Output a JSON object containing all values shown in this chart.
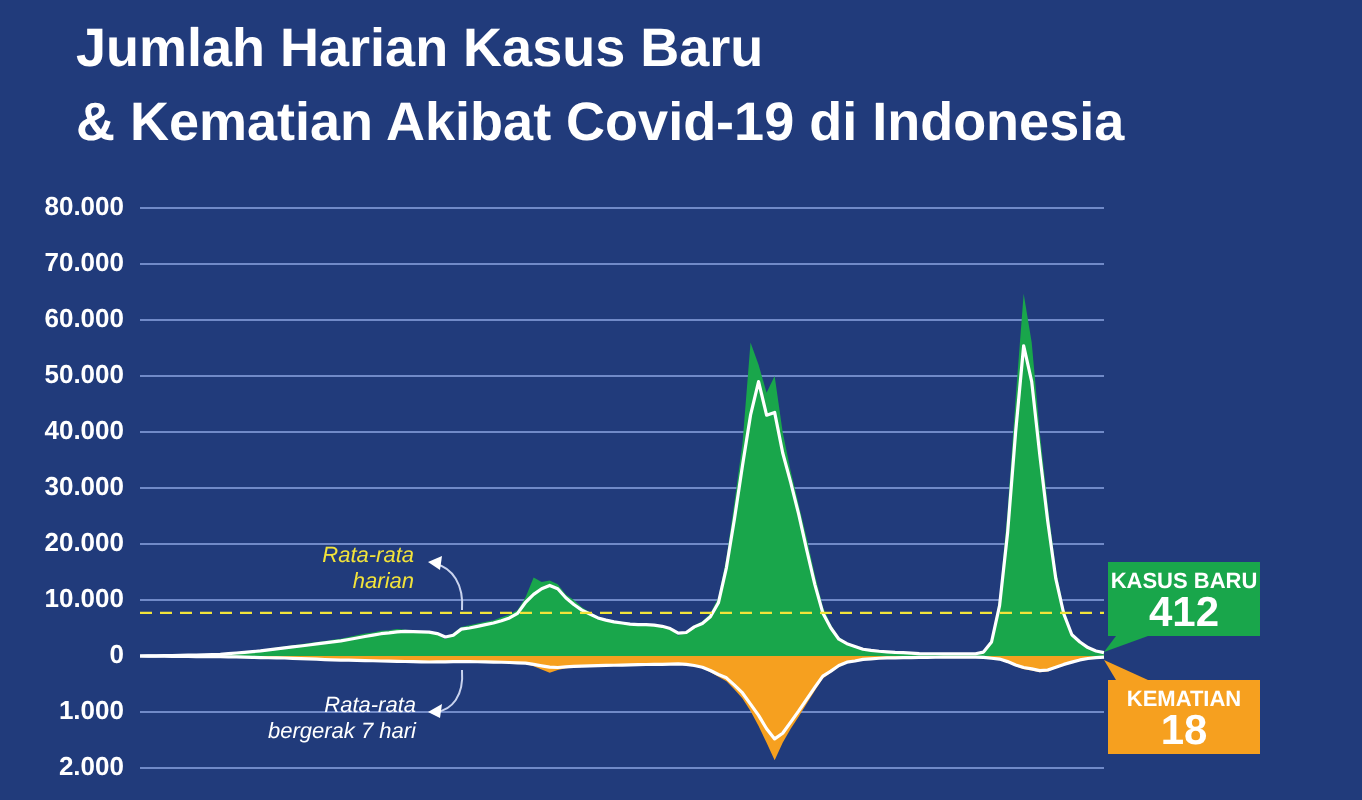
{
  "chart_data": {
    "type": "area",
    "title": "Jumlah Harian Kasus Baru\n& Kematian Akibat Covid-19 di Indonesia",
    "categories": [
      null,
      null,
      null,
      null,
      null,
      null,
      null,
      null,
      null,
      null,
      null,
      null,
      null,
      null,
      null,
      null,
      null,
      null,
      null,
      null,
      null,
      null,
      null,
      null,
      null,
      null,
      null,
      null,
      null,
      null,
      null,
      null,
      null,
      null,
      null,
      null,
      null,
      null,
      null,
      null,
      null,
      null,
      null,
      null,
      null,
      null,
      null,
      null,
      null,
      null,
      null,
      null,
      null,
      null,
      null,
      null,
      null,
      null,
      null,
      null,
      null,
      null,
      null,
      null,
      null,
      null,
      null,
      null,
      null,
      null,
      null,
      null,
      null,
      null,
      null,
      null,
      null,
      null,
      null,
      null,
      null,
      null,
      null,
      null,
      null,
      null,
      null,
      null,
      null,
      null,
      null,
      null,
      null,
      null,
      null,
      null,
      null,
      null,
      null,
      null,
      null,
      null,
      null,
      null,
      null,
      null,
      null,
      null,
      null,
      null,
      null,
      null,
      null,
      null,
      null,
      null,
      null,
      null,
      null,
      null,
      null
    ],
    "ylim": [
      -20000,
      80000
    ],
    "yticks": [
      0,
      {
        "value": 10000,
        "label": "10.000"
      },
      {
        "value": 20000,
        "label": "20.000"
      },
      {
        "value": 30000,
        "label": "30.000"
      },
      {
        "value": 40000,
        "label": "40.000"
      },
      {
        "value": 50000,
        "label": "50.000"
      },
      {
        "value": 60000,
        "label": "60.000"
      },
      {
        "value": 70000,
        "label": "70.000"
      },
      {
        "value": 80000,
        "label": "80.000"
      }
    ],
    "y2lim": [
      2000,
      -8000
    ],
    "y2ticks": [
      {
        "value": 1000,
        "label": "1.000"
      },
      {
        "value": 2000,
        "label": "2.000"
      }
    ],
    "grid": true,
    "marker": "none",
    "ref_lines": [
      {
        "axis": "y",
        "value": 7700,
        "label": "Rata-rata harian",
        "color": "#f2e33a",
        "line_style": "dashed"
      }
    ],
    "annotations": [
      "Rata-rata bergerak 7 hari"
    ],
    "series": [
      {
        "name": "KASUS BARU",
        "color": "#19a64b",
        "values": [
          0,
          30,
          60,
          90,
          110,
          130,
          200,
          250,
          300,
          350,
          400,
          500,
          600,
          800,
          900,
          1100,
          1300,
          1500,
          1700,
          1900,
          2100,
          2300,
          2500,
          2700,
          2900,
          3100,
          3400,
          3700,
          4000,
          4200,
          4500,
          4600,
          4800,
          4700,
          4600,
          4400,
          4300,
          3800,
          3000,
          4100,
          5200,
          5500,
          5800,
          6100,
          6400,
          6900,
          7400,
          8200,
          10500,
          14000,
          13200,
          13500,
          12800,
          11000,
          10000,
          8700,
          7800,
          7100,
          6600,
          6300,
          6100,
          5900,
          5700,
          5800,
          5600,
          5400,
          5000,
          3600,
          4400,
          5500,
          6200,
          7600,
          10500,
          17500,
          27500,
          38000,
          56000,
          52000,
          47000,
          50000,
          40000,
          33000,
          27000,
          21000,
          14500,
          8800,
          5600,
          3400,
          2400,
          1800,
          1300,
          1100,
          900,
          800,
          700,
          650,
          550,
          450,
          420,
          420,
          420,
          420,
          420,
          420,
          420,
          800,
          3000,
          10500,
          26000,
          46000,
          64700,
          56000,
          40000,
          27000,
          15500,
          8500,
          4200,
          2700,
          1700,
          1000,
          412
        ],
        "value_labels": [
          null,
          null,
          null,
          null,
          null,
          null,
          null,
          null,
          null,
          null,
          null,
          null,
          null,
          null,
          null,
          null,
          null,
          null,
          null,
          null,
          null,
          null,
          null,
          null,
          null,
          null,
          null,
          null,
          null,
          null,
          null,
          null,
          null,
          null,
          null,
          null,
          null,
          null,
          null,
          null,
          null,
          null,
          null,
          null,
          null,
          null,
          null,
          null,
          null,
          null,
          null,
          null,
          null,
          null,
          null,
          null,
          null,
          null,
          null,
          null,
          null,
          null,
          null,
          null,
          null,
          null,
          null,
          null,
          null,
          null,
          null,
          null,
          null,
          null,
          null,
          null,
          null,
          null,
          null,
          null,
          null,
          null,
          null,
          null,
          null,
          null,
          null,
          null,
          null,
          null,
          null,
          null,
          null,
          null,
          null,
          null,
          null,
          null,
          null,
          null,
          null,
          null,
          null,
          null,
          null,
          null,
          null,
          null,
          null,
          null,
          null,
          null,
          null,
          null,
          null,
          null,
          null,
          null,
          null,
          null,
          "412"
        ]
      },
      {
        "type": "line",
        "color": "#ffffff",
        "values": [
          0,
          20,
          40,
          60,
          80,
          100,
          140,
          180,
          220,
          260,
          300,
          420,
          540,
          660,
          780,
          900,
          1080,
          1270,
          1450,
          1630,
          1790,
          1960,
          2160,
          2330,
          2510,
          2700,
          2950,
          3220,
          3480,
          3740,
          3980,
          4120,
          4310,
          4380,
          4340,
          4300,
          4250,
          4000,
          3400,
          3700,
          4800,
          5000,
          5300,
          5600,
          5900,
          6300,
          6800,
          7600,
          9600,
          11000,
          12000,
          12600,
          12000,
          10400,
          9200,
          8200,
          7500,
          6800,
          6400,
          6100,
          5900,
          5700,
          5600,
          5600,
          5500,
          5300,
          4900,
          4100,
          4200,
          5200,
          5800,
          7000,
          9500,
          15800,
          24500,
          34000,
          43000,
          49000,
          43000,
          43500,
          36300,
          31000,
          25300,
          18900,
          12800,
          7700,
          5000,
          3000,
          2200,
          1700,
          1200,
          1000,
          850,
          750,
          650,
          600,
          500,
          420,
          400,
          400,
          400,
          400,
          400,
          400,
          400,
          700,
          2500,
          9000,
          22000,
          40000,
          55400,
          49000,
          36000,
          24000,
          13800,
          7500,
          3800,
          2500,
          1500,
          900,
          600
        ]
      },
      {
        "name": "KEMATIAN",
        "axis": "y2",
        "color": "#f6a01f",
        "values": [
          0,
          1,
          3,
          5,
          8,
          10,
          11,
          12,
          12,
          12,
          13,
          17,
          20,
          25,
          30,
          33,
          36,
          40,
          45,
          50,
          55,
          60,
          65,
          70,
          75,
          80,
          84,
          88,
          92,
          96,
          100,
          104,
          108,
          112,
          115,
          118,
          120,
          116,
          112,
          110,
          108,
          110,
          112,
          115,
          118,
          122,
          128,
          135,
          145,
          185,
          240,
          300,
          250,
          220,
          205,
          195,
          190,
          185,
          180,
          178,
          175,
          170,
          168,
          165,
          162,
          160,
          158,
          150,
          165,
          185,
          220,
          290,
          370,
          450,
          600,
          760,
          980,
          1250,
          1550,
          1860,
          1550,
          1300,
          1080,
          850,
          620,
          400,
          300,
          190,
          120,
          100,
          70,
          60,
          45,
          40,
          38,
          35,
          32,
          30,
          27,
          25,
          22,
          22,
          22,
          22,
          22,
          28,
          45,
          65,
          120,
          185,
          235,
          260,
          290,
          275,
          220,
          165,
          120,
          80,
          50,
          35,
          18
        ],
        "value_labels": [
          null,
          null,
          null,
          null,
          null,
          null,
          null,
          null,
          null,
          null,
          null,
          null,
          null,
          null,
          null,
          null,
          null,
          null,
          null,
          null,
          null,
          null,
          null,
          null,
          null,
          null,
          null,
          null,
          null,
          null,
          null,
          null,
          null,
          null,
          null,
          null,
          null,
          null,
          null,
          null,
          null,
          null,
          null,
          null,
          null,
          null,
          null,
          null,
          null,
          null,
          null,
          null,
          null,
          null,
          null,
          null,
          null,
          null,
          null,
          null,
          null,
          null,
          null,
          null,
          null,
          null,
          null,
          null,
          null,
          null,
          null,
          null,
          null,
          null,
          null,
          null,
          null,
          null,
          null,
          null,
          null,
          null,
          null,
          null,
          null,
          null,
          null,
          null,
          null,
          null,
          null,
          null,
          null,
          null,
          null,
          null,
          null,
          null,
          null,
          null,
          null,
          null,
          null,
          null,
          null,
          null,
          null,
          null,
          null,
          null,
          null,
          null,
          null,
          null,
          null,
          null,
          null,
          null,
          null,
          null,
          "18"
        ]
      },
      {
        "type": "line",
        "axis": "y2",
        "color": "#ffffff",
        "values": [
          0,
          1,
          2,
          4,
          6,
          8,
          9,
          10,
          10,
          10,
          10,
          14,
          17,
          21,
          25,
          28,
          31,
          34,
          36,
          41,
          47,
          52,
          57,
          63,
          68,
          72,
          75,
          78,
          82,
          85,
          89,
          92,
          95,
          98,
          101,
          104,
          107,
          106,
          104,
          102,
          100,
          101,
          103,
          106,
          109,
          112,
          116,
          122,
          128,
          150,
          175,
          200,
          205,
          195,
          185,
          180,
          176,
          172,
          168,
          165,
          162,
          158,
          155,
          152,
          150,
          148,
          145,
          142,
          150,
          170,
          200,
          260,
          330,
          390,
          520,
          660,
          860,
          1060,
          1300,
          1480,
          1380,
          1180,
          980,
          770,
          560,
          360,
          270,
          170,
          110,
          90,
          60,
          50,
          40,
          35,
          33,
          30,
          28,
          26,
          24,
          22,
          20,
          20,
          20,
          20,
          20,
          25,
          40,
          55,
          100,
          160,
          205,
          230,
          260,
          250,
          200,
          150,
          110,
          70,
          45,
          30,
          20
        ]
      }
    ]
  }
}
